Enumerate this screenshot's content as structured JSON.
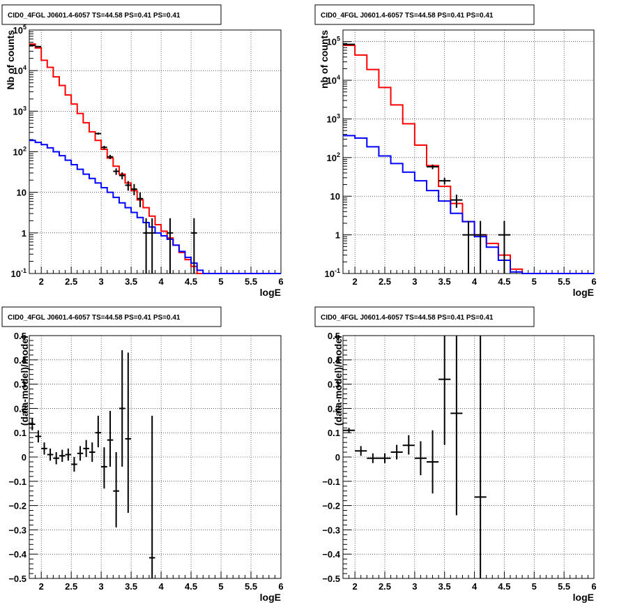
{
  "chart_data": [
    {
      "type": "line",
      "title": "CID0_4FGL J0601.4-6057 TS=44.58 PS=0.41 PS=0.41",
      "xlabel": "logE",
      "ylabel": "Nb of counts",
      "yscale": "log",
      "xlim": [
        1.8,
        6.0
      ],
      "ylim": [
        0.1,
        100000
      ],
      "grid": true,
      "x_ticks": [
        "2",
        "2.5",
        "3",
        "3.5",
        "4",
        "4.5",
        "5",
        "5.5",
        "6"
      ],
      "y_ticks": [
        "10^-1",
        "1",
        "10",
        "10^2",
        "10^3",
        "10^4",
        "10^5"
      ],
      "bin_edges": [
        1.8,
        1.9,
        2.0,
        2.1,
        2.2,
        2.3,
        2.4,
        2.5,
        2.6,
        2.7,
        2.8,
        2.9,
        3.0,
        3.1,
        3.2,
        3.3,
        3.4,
        3.5,
        3.6,
        3.7,
        3.8,
        3.9,
        4.0,
        4.1,
        4.2,
        4.3,
        4.4,
        4.5,
        4.6,
        4.7,
        4.8,
        4.9,
        5.0,
        5.1,
        5.2,
        5.3,
        5.4,
        5.5,
        5.6,
        5.7,
        5.8,
        5.9,
        6.0
      ],
      "series": [
        {
          "color": "#ff0000",
          "values": [
            45000,
            36000,
            18000,
            12000,
            7000,
            4300,
            2500,
            1500,
            880,
            520,
            310,
            190,
            115,
            70,
            44,
            28,
            17,
            11,
            6.5,
            4.2,
            2.6,
            1.6,
            1.1,
            0.75,
            0.5,
            0.33,
            0.22,
            0.15,
            0.1,
            0.1,
            0.1,
            0.1,
            0.1,
            0.1,
            0.1,
            0.1,
            0.1,
            0.1,
            0.1,
            0.1,
            0.1,
            0.1
          ]
        },
        {
          "color": "#0000ff",
          "values": [
            190,
            170,
            150,
            125,
            100,
            80,
            62,
            48,
            37,
            28,
            22,
            17,
            13,
            10,
            7.5,
            5.5,
            4.2,
            3.2,
            2.4,
            1.8,
            1.4,
            1.0,
            0.85,
            0.7,
            0.5,
            0.35,
            0.25,
            0.18,
            0.12,
            0.1,
            0.1,
            0.1,
            0.1,
            0.1,
            0.1,
            0.1,
            0.1,
            0.1,
            0.1,
            0.1,
            0.1,
            0.1
          ]
        }
      ],
      "points": [
        {
          "x": 1.85,
          "y": 42000,
          "xerr": 0.05,
          "ylo": 41800,
          "yhi": 42200
        },
        {
          "x": 1.95,
          "y": 39000,
          "xerr": 0.05,
          "ylo": 38800,
          "yhi": 39200
        },
        {
          "x": 2.95,
          "y": 280,
          "xerr": 0.05,
          "ylo": 265,
          "yhi": 297
        },
        {
          "x": 3.05,
          "y": 128,
          "xerr": 0.05,
          "ylo": 117,
          "yhi": 140
        },
        {
          "x": 3.15,
          "y": 75,
          "xerr": 0.05,
          "ylo": 66,
          "yhi": 84
        },
        {
          "x": 3.25,
          "y": 33,
          "xerr": 0.05,
          "ylo": 27,
          "yhi": 39
        },
        {
          "x": 3.35,
          "y": 26,
          "xerr": 0.05,
          "ylo": 21,
          "yhi": 31
        },
        {
          "x": 3.45,
          "y": 15,
          "xerr": 0.05,
          "ylo": 11,
          "yhi": 19
        },
        {
          "x": 3.55,
          "y": 12,
          "xerr": 0.05,
          "ylo": 8.5,
          "yhi": 16
        },
        {
          "x": 3.65,
          "y": 7,
          "xerr": 0.05,
          "ylo": 4.3,
          "yhi": 10
        },
        {
          "x": 3.75,
          "y": 1,
          "xerr": 0.05,
          "ylo": 0.1,
          "yhi": 2.3
        },
        {
          "x": 3.85,
          "y": 1,
          "xerr": 0.05,
          "ylo": 0.1,
          "yhi": 2.3
        },
        {
          "x": 4.15,
          "y": 1,
          "xerr": 0.05,
          "ylo": 0.1,
          "yhi": 2.3
        },
        {
          "x": 4.55,
          "y": 1,
          "xerr": 0.05,
          "ylo": 0.1,
          "yhi": 2.3
        }
      ]
    },
    {
      "type": "line",
      "title": "CID0_4FGL J0601.4-6057 TS=44.58 PS=0.41 PS=0.41",
      "xlabel": "logE",
      "ylabel": "nb of counts",
      "yscale": "log",
      "xlim": [
        1.8,
        6.0
      ],
      "ylim": [
        0.1,
        200000
      ],
      "grid": true,
      "x_ticks": [
        "2",
        "2.5",
        "3",
        "3.5",
        "4",
        "4.5",
        "5",
        "5.5",
        "6"
      ],
      "y_ticks": [
        "10^-1",
        "1",
        "10",
        "10^2",
        "10^3",
        "10^4",
        "10^5"
      ],
      "bin_edges": [
        1.8,
        2.0,
        2.2,
        2.4,
        2.6,
        2.8,
        3.0,
        3.2,
        3.4,
        3.6,
        3.8,
        4.0,
        4.2,
        4.4,
        4.6,
        4.8,
        5.0,
        5.2,
        5.4,
        5.6,
        5.8,
        6.0
      ],
      "series": [
        {
          "color": "#ff0000",
          "values": [
            80000,
            45000,
            19000,
            6500,
            2300,
            750,
            210,
            62,
            18,
            6.5,
            2.2,
            1.0,
            0.6,
            0.3,
            0.13,
            0.1,
            0.1,
            0.1,
            0.1,
            0.1,
            0.1
          ]
        },
        {
          "color": "#0000ff",
          "values": [
            370,
            320,
            190,
            110,
            70,
            42,
            25,
            14,
            7.5,
            3.6,
            2.2,
            0.9,
            0.48,
            0.22,
            0.11,
            0.1,
            0.1,
            0.1,
            0.1,
            0.1,
            0.1
          ]
        }
      ],
      "points": [
        {
          "x": 1.9,
          "y": 85000,
          "xerr": 0.1,
          "ylo": 84700,
          "yhi": 85300
        },
        {
          "x": 3.3,
          "y": 58,
          "xerr": 0.1,
          "ylo": 50,
          "yhi": 66
        },
        {
          "x": 3.5,
          "y": 25,
          "xerr": 0.1,
          "ylo": 20,
          "yhi": 30
        },
        {
          "x": 3.7,
          "y": 8,
          "xerr": 0.1,
          "ylo": 5,
          "yhi": 11
        },
        {
          "x": 3.9,
          "y": 1,
          "xerr": 0.1,
          "ylo": 0.1,
          "yhi": 2.3
        },
        {
          "x": 4.1,
          "y": 1,
          "xerr": 0.1,
          "ylo": 0.1,
          "yhi": 2.3
        },
        {
          "x": 4.5,
          "y": 1,
          "xerr": 0.1,
          "ylo": 0.1,
          "yhi": 2.3
        }
      ]
    },
    {
      "type": "scatter",
      "title": "CID0_4FGL J0601.4-6057 TS=44.58 PS=0.41 PS=0.41",
      "xlabel": "logE",
      "ylabel": "(data-model)/model",
      "yscale": "linear",
      "xlim": [
        1.8,
        6.0
      ],
      "ylim": [
        -0.5,
        0.5
      ],
      "grid": true,
      "x_ticks": [
        "2",
        "2.5",
        "3",
        "3.5",
        "4",
        "4.5",
        "5",
        "5.5",
        "6"
      ],
      "y_ticks": [
        "-0.5",
        "-0.4",
        "-0.3",
        "-0.2",
        "-0.1",
        "0",
        "0.1",
        "0.2",
        "0.3",
        "0.4",
        "0.5"
      ],
      "points": [
        {
          "x": 1.85,
          "y": 0.135,
          "xerr": 0.05,
          "ylo": 0.11,
          "yhi": 0.16
        },
        {
          "x": 1.95,
          "y": 0.085,
          "xerr": 0.05,
          "ylo": 0.06,
          "yhi": 0.11
        },
        {
          "x": 2.05,
          "y": 0.035,
          "xerr": 0.05,
          "ylo": 0.01,
          "yhi": 0.06
        },
        {
          "x": 2.15,
          "y": 0.01,
          "xerr": 0.05,
          "ylo": -0.015,
          "yhi": 0.035
        },
        {
          "x": 2.25,
          "y": -0.005,
          "xerr": 0.05,
          "ylo": -0.03,
          "yhi": 0.02
        },
        {
          "x": 2.35,
          "y": 0.005,
          "xerr": 0.05,
          "ylo": -0.02,
          "yhi": 0.03
        },
        {
          "x": 2.45,
          "y": 0.01,
          "xerr": 0.05,
          "ylo": -0.015,
          "yhi": 0.035
        },
        {
          "x": 2.55,
          "y": -0.03,
          "xerr": 0.05,
          "ylo": -0.06,
          "yhi": 0.0
        },
        {
          "x": 2.65,
          "y": 0.015,
          "xerr": 0.05,
          "ylo": -0.015,
          "yhi": 0.045
        },
        {
          "x": 2.75,
          "y": 0.035,
          "xerr": 0.05,
          "ylo": 0.0,
          "yhi": 0.07
        },
        {
          "x": 2.85,
          "y": 0.02,
          "xerr": 0.05,
          "ylo": -0.02,
          "yhi": 0.06
        },
        {
          "x": 2.95,
          "y": 0.1,
          "xerr": 0.05,
          "ylo": 0.04,
          "yhi": 0.17
        },
        {
          "x": 3.05,
          "y": -0.04,
          "xerr": 0.05,
          "ylo": -0.13,
          "yhi": 0.04
        },
        {
          "x": 3.15,
          "y": 0.07,
          "xerr": 0.05,
          "ylo": -0.04,
          "yhi": 0.19
        },
        {
          "x": 3.25,
          "y": -0.14,
          "xerr": 0.05,
          "ylo": -0.29,
          "yhi": 0.02
        },
        {
          "x": 3.35,
          "y": 0.2,
          "xerr": 0.05,
          "ylo": -0.04,
          "yhi": 0.44
        },
        {
          "x": 3.45,
          "y": 0.075,
          "xerr": 0.05,
          "ylo": -0.23,
          "yhi": 0.43
        },
        {
          "x": 3.85,
          "y": -0.415,
          "xerr": 0.05,
          "ylo": -0.5,
          "yhi": 0.17
        }
      ]
    },
    {
      "type": "scatter",
      "title": "CID0_4FGL J0601.4-6057 TS=44.58 PS=0.41 PS=0.41",
      "xlabel": "logE",
      "ylabel": "(data-model)/model",
      "yscale": "linear",
      "xlim": [
        1.8,
        6.0
      ],
      "ylim": [
        -0.5,
        0.5
      ],
      "grid": true,
      "x_ticks": [
        "2",
        "2.5",
        "3",
        "3.5",
        "4",
        "4.5",
        "5",
        "5.5",
        "6"
      ],
      "y_ticks": [
        "-0.5",
        "-0.4",
        "-0.3",
        "-0.2",
        "-0.1",
        "0",
        "0.1",
        "0.2",
        "0.3",
        "0.4",
        "0.5"
      ],
      "points": [
        {
          "x": 1.9,
          "y": 0.11,
          "xerr": 0.1,
          "ylo": 0.1,
          "yhi": 0.12
        },
        {
          "x": 2.1,
          "y": 0.025,
          "xerr": 0.1,
          "ylo": 0.005,
          "yhi": 0.045
        },
        {
          "x": 2.3,
          "y": -0.005,
          "xerr": 0.1,
          "ylo": -0.025,
          "yhi": 0.015
        },
        {
          "x": 2.5,
          "y": -0.005,
          "xerr": 0.1,
          "ylo": -0.025,
          "yhi": 0.015
        },
        {
          "x": 2.7,
          "y": 0.02,
          "xerr": 0.1,
          "ylo": -0.01,
          "yhi": 0.05
        },
        {
          "x": 2.9,
          "y": 0.048,
          "xerr": 0.1,
          "ylo": 0.01,
          "yhi": 0.09
        },
        {
          "x": 3.1,
          "y": -0.005,
          "xerr": 0.1,
          "ylo": -0.075,
          "yhi": 0.065
        },
        {
          "x": 3.3,
          "y": -0.02,
          "xerr": 0.1,
          "ylo": -0.15,
          "yhi": 0.11
        },
        {
          "x": 3.5,
          "y": 0.32,
          "xerr": 0.1,
          "ylo": 0.05,
          "yhi": 0.5
        },
        {
          "x": 3.7,
          "y": 0.18,
          "xerr": 0.1,
          "ylo": -0.24,
          "yhi": 0.5
        },
        {
          "x": 4.1,
          "y": -0.165,
          "xerr": 0.1,
          "ylo": -0.5,
          "yhi": 0.5
        }
      ]
    }
  ]
}
